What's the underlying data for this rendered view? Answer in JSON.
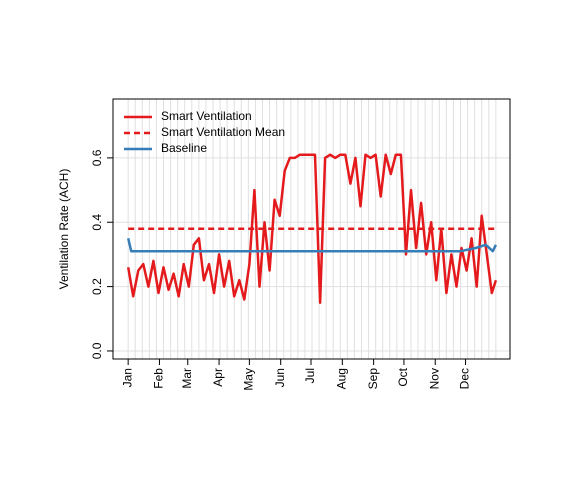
{
  "chart_data": {
    "type": "line",
    "ylabel": "Ventilation Rate (ACH)",
    "xlim": [
      -14,
      379
    ],
    "ylim": [
      -0.025,
      0.783
    ],
    "xticks": [
      {
        "value": 1,
        "label": "Jan"
      },
      {
        "value": 32,
        "label": "Feb"
      },
      {
        "value": 60,
        "label": "Mar"
      },
      {
        "value": 91,
        "label": "Apr"
      },
      {
        "value": 121,
        "label": "May"
      },
      {
        "value": 152,
        "label": "Jun"
      },
      {
        "value": 182,
        "label": "Jul"
      },
      {
        "value": 213,
        "label": "Aug"
      },
      {
        "value": 244,
        "label": "Sep"
      },
      {
        "value": 274,
        "label": "Oct"
      },
      {
        "value": 305,
        "label": "Nov"
      },
      {
        "value": 335,
        "label": "Dec"
      }
    ],
    "yticks": [
      {
        "value": 0,
        "label": "0.0"
      },
      {
        "value": 0.2,
        "label": "0.2"
      },
      {
        "value": 0.4,
        "label": "0.4"
      },
      {
        "value": 0.6,
        "label": "0.6"
      }
    ],
    "xgrid": [
      1,
      8,
      15,
      22,
      29,
      36,
      43,
      50,
      57,
      64,
      71,
      78,
      85,
      92,
      99,
      106,
      113,
      120,
      127,
      134,
      141,
      148,
      155,
      162,
      169,
      176,
      183,
      190,
      197,
      204,
      211,
      218,
      225,
      232,
      239,
      246,
      253,
      260,
      267,
      274,
      281,
      288,
      295,
      302,
      309,
      316,
      323,
      330,
      337,
      344,
      351,
      358,
      365
    ],
    "grid": true,
    "legend": "topleft",
    "series": [
      {
        "name": "Smart Ventilation",
        "color": "#e41a1c",
        "linestyle": "solid",
        "x": [
          1,
          6,
          11,
          16,
          21,
          26,
          31,
          36,
          41,
          46,
          51,
          56,
          61,
          66,
          71,
          76,
          81,
          86,
          91,
          96,
          101,
          106,
          111,
          116,
          121,
          126,
          131,
          136,
          141,
          146,
          151,
          156,
          161,
          166,
          171,
          176,
          181,
          186,
          191,
          196,
          201,
          206,
          211,
          216,
          221,
          226,
          231,
          236,
          241,
          246,
          251,
          256,
          261,
          266,
          271,
          276,
          281,
          286,
          291,
          296,
          301,
          306,
          311,
          316,
          321,
          326,
          331,
          336,
          341,
          346,
          351,
          356,
          361,
          365
        ],
        "values": [
          0.26,
          0.17,
          0.25,
          0.27,
          0.2,
          0.28,
          0.18,
          0.26,
          0.19,
          0.24,
          0.17,
          0.27,
          0.2,
          0.33,
          0.35,
          0.22,
          0.27,
          0.18,
          0.3,
          0.2,
          0.28,
          0.17,
          0.22,
          0.16,
          0.27,
          0.5,
          0.2,
          0.4,
          0.25,
          0.47,
          0.42,
          0.56,
          0.6,
          0.6,
          0.61,
          0.61,
          0.61,
          0.61,
          0.15,
          0.6,
          0.61,
          0.6,
          0.61,
          0.61,
          0.52,
          0.6,
          0.45,
          0.61,
          0.6,
          0.61,
          0.48,
          0.61,
          0.55,
          0.61,
          0.61,
          0.3,
          0.5,
          0.32,
          0.46,
          0.3,
          0.4,
          0.22,
          0.38,
          0.18,
          0.3,
          0.2,
          0.32,
          0.25,
          0.35,
          0.2,
          0.42,
          0.3,
          0.18,
          0.22
        ]
      },
      {
        "name": "Smart Ventilation Mean",
        "color": "#e41a1c",
        "linestyle": "dashed",
        "x": [
          1,
          365
        ],
        "values": [
          0.38,
          0.38
        ]
      },
      {
        "name": "Baseline",
        "color": "#377eb8",
        "linestyle": "solid",
        "x": [
          1,
          4,
          8,
          30,
          60,
          90,
          120,
          150,
          180,
          210,
          240,
          270,
          300,
          330,
          345,
          355,
          362,
          365
        ],
        "values": [
          0.35,
          0.31,
          0.31,
          0.31,
          0.31,
          0.31,
          0.31,
          0.31,
          0.31,
          0.31,
          0.31,
          0.31,
          0.31,
          0.31,
          0.32,
          0.33,
          0.31,
          0.33
        ]
      }
    ]
  }
}
